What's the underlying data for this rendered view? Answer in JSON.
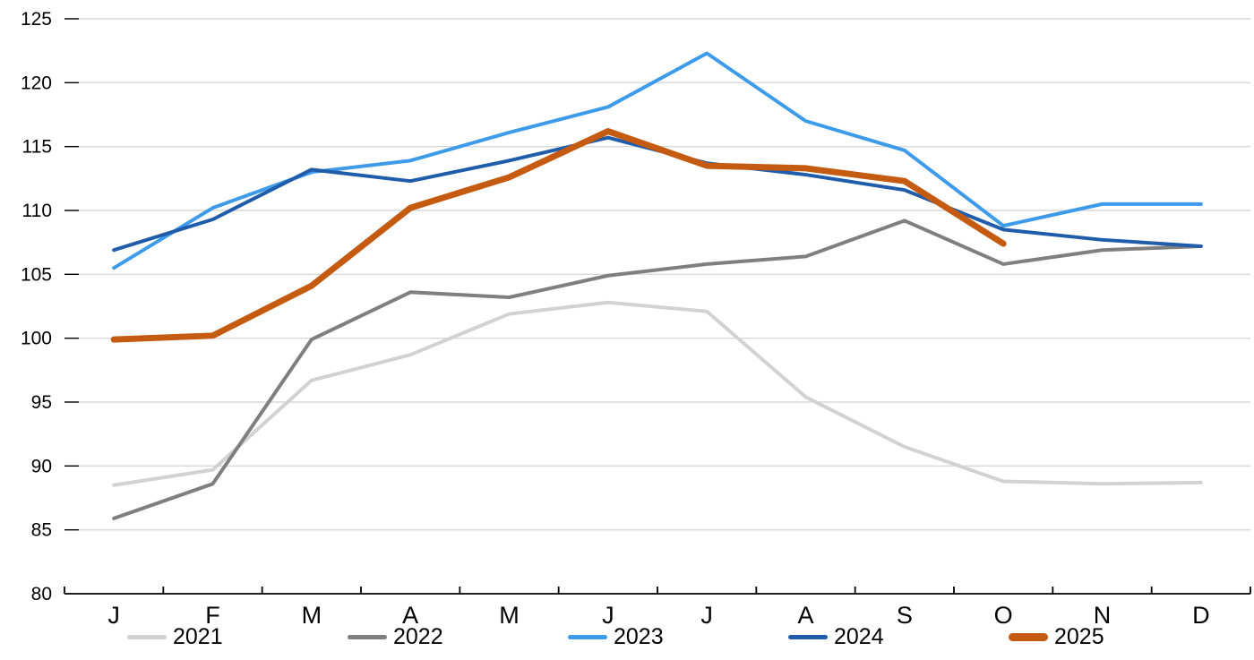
{
  "chart_data": {
    "type": "line",
    "title": "",
    "xlabel": "",
    "ylabel": "",
    "categories": [
      "J",
      "F",
      "M",
      "A",
      "M",
      "J",
      "J",
      "A",
      "S",
      "O",
      "N",
      "D"
    ],
    "series": [
      {
        "name": "2021",
        "color": "#D2D2D2",
        "line_width": 4,
        "values": [
          88.5,
          89.7,
          96.7,
          98.7,
          101.9,
          102.8,
          102.1,
          95.4,
          91.5,
          88.8,
          88.6,
          88.7
        ]
      },
      {
        "name": "2022",
        "color": "#7F7F7F",
        "line_width": 4,
        "values": [
          85.9,
          88.6,
          99.9,
          103.6,
          103.2,
          104.9,
          105.8,
          106.4,
          109.2,
          105.8,
          106.9,
          107.2
        ]
      },
      {
        "name": "2023",
        "color": "#3D9BE9",
        "line_width": 4,
        "values": [
          105.5,
          110.2,
          113.0,
          113.9,
          116.1,
          118.1,
          122.3,
          117.0,
          114.7,
          108.8,
          110.5,
          110.5
        ]
      },
      {
        "name": "2024",
        "color": "#1F5CA9",
        "line_width": 4,
        "values": [
          106.9,
          109.3,
          113.2,
          112.3,
          113.9,
          115.7,
          113.7,
          112.8,
          111.6,
          108.5,
          107.7,
          107.2
        ]
      },
      {
        "name": "2025",
        "color": "#C55A11",
        "line_width": 7,
        "values": [
          99.9,
          100.2,
          104.1,
          110.2,
          112.6,
          116.2,
          113.5,
          113.3,
          112.3,
          107.4
        ]
      }
    ],
    "y_axis": {
      "min": 80,
      "max": 125,
      "step": 5,
      "tick_labels": [
        "125",
        "120",
        "115",
        "110",
        "105",
        "100",
        "95",
        "90",
        "85",
        "80"
      ]
    },
    "grid": true,
    "grid_color": "#D9D9D9",
    "axis_color": "#000000",
    "text_color": "#000000",
    "legend_position": "bottom"
  }
}
